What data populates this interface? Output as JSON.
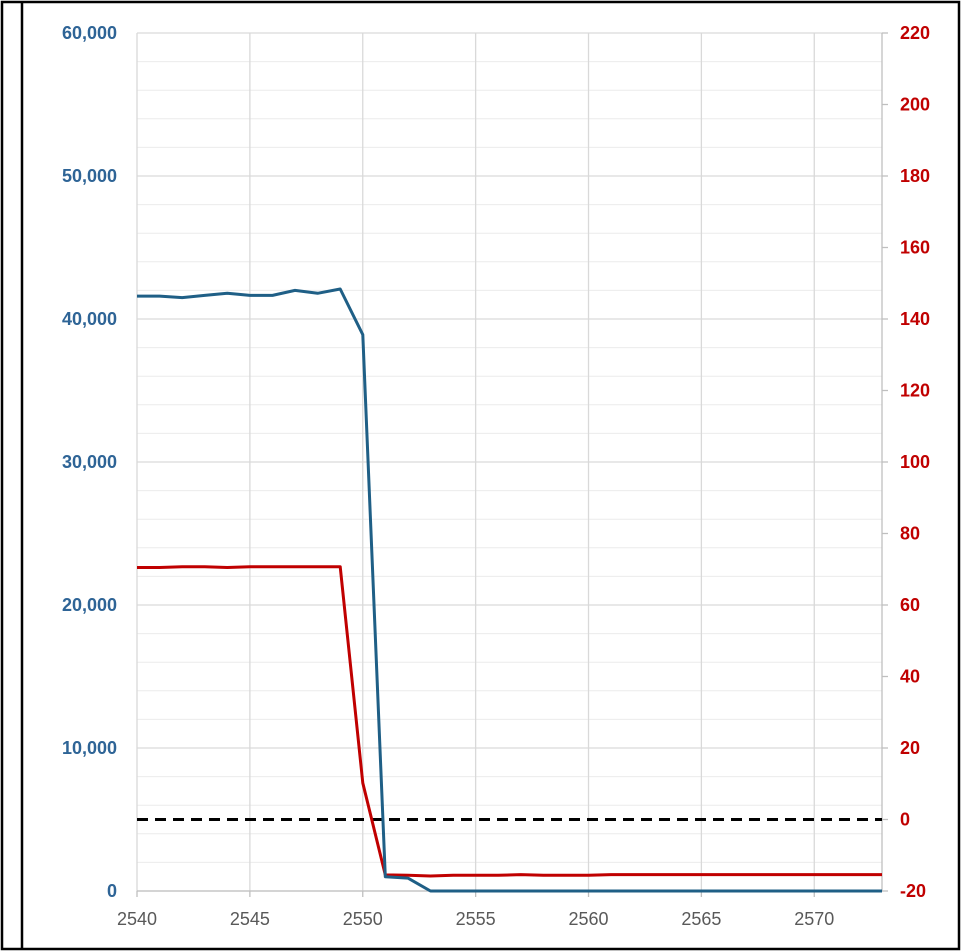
{
  "chart_data": {
    "type": "line",
    "title": "",
    "xlabel": "",
    "ylabel": "",
    "y2label": "",
    "xlim": [
      2540,
      2573
    ],
    "ylim": [
      0,
      60000
    ],
    "y2lim": [
      -20,
      220
    ],
    "x_ticks": [
      2540,
      2545,
      2550,
      2555,
      2560,
      2565,
      2570
    ],
    "x_tick_labels": [
      "2540",
      "2545",
      "2550",
      "2555",
      "2560",
      "2565",
      "2570"
    ],
    "y_ticks": [
      0,
      10000,
      20000,
      30000,
      40000,
      50000,
      60000
    ],
    "y_tick_labels": [
      "0",
      "10,000",
      "20,000",
      "30,000",
      "40,000",
      "50,000",
      "60,000"
    ],
    "y2_ticks": [
      -20,
      0,
      20,
      40,
      60,
      80,
      100,
      120,
      140,
      160,
      180,
      200,
      220
    ],
    "y2_tick_labels": [
      "-20",
      "0",
      "20",
      "40",
      "60",
      "80",
      "100",
      "120",
      "140",
      "160",
      "180",
      "200",
      "220"
    ],
    "y_minor_step": 2000,
    "x_minor_grid": false,
    "grid": true,
    "legend": "none",
    "colors": {
      "blue": "#2e6496",
      "red": "#c00000",
      "reference": "#000000",
      "grid_major": "#d9d9d9",
      "grid_minor": "#ececec"
    },
    "series": [
      {
        "axis": "left",
        "color": "#1f5f86",
        "x": [
          2540,
          2541,
          2542,
          2543,
          2544,
          2545,
          2546,
          2547,
          2548,
          2549,
          2550,
          2551,
          2552,
          2553,
          2554,
          2555,
          2556,
          2557,
          2558,
          2559,
          2560,
          2561,
          2562,
          2563,
          2564,
          2565,
          2566,
          2567,
          2568,
          2569,
          2570,
          2571,
          2572,
          2573
        ],
        "values": [
          41600,
          41600,
          41500,
          41650,
          41800,
          41650,
          41650,
          42000,
          41800,
          42100,
          38900,
          1000,
          900,
          0,
          0,
          0,
          0,
          0,
          0,
          0,
          0,
          0,
          0,
          0,
          0,
          0,
          0,
          0,
          0,
          0,
          0,
          0,
          0,
          0
        ]
      },
      {
        "axis": "right",
        "color": "#c00000",
        "x": [
          2540,
          2541,
          2542,
          2543,
          2544,
          2545,
          2546,
          2547,
          2548,
          2549,
          2550,
          2551,
          2552,
          2553,
          2554,
          2555,
          2556,
          2557,
          2558,
          2559,
          2560,
          2561,
          2562,
          2563,
          2564,
          2565,
          2566,
          2567,
          2568,
          2569,
          2570,
          2571,
          2572,
          2573
        ],
        "values": [
          70.5,
          70.5,
          70.7,
          70.7,
          70.5,
          70.7,
          70.7,
          70.7,
          70.7,
          70.7,
          10.2,
          -15.5,
          -15.6,
          -15.8,
          -15.6,
          -15.6,
          -15.6,
          -15.4,
          -15.6,
          -15.6,
          -15.6,
          -15.4,
          -15.4,
          -15.4,
          -15.4,
          -15.4,
          -15.4,
          -15.4,
          -15.4,
          -15.4,
          -15.4,
          -15.4,
          -15.4,
          -15.4
        ]
      }
    ],
    "reference_line": {
      "axis": "right",
      "value": 0,
      "style": "dashed",
      "color": "#000000"
    }
  }
}
